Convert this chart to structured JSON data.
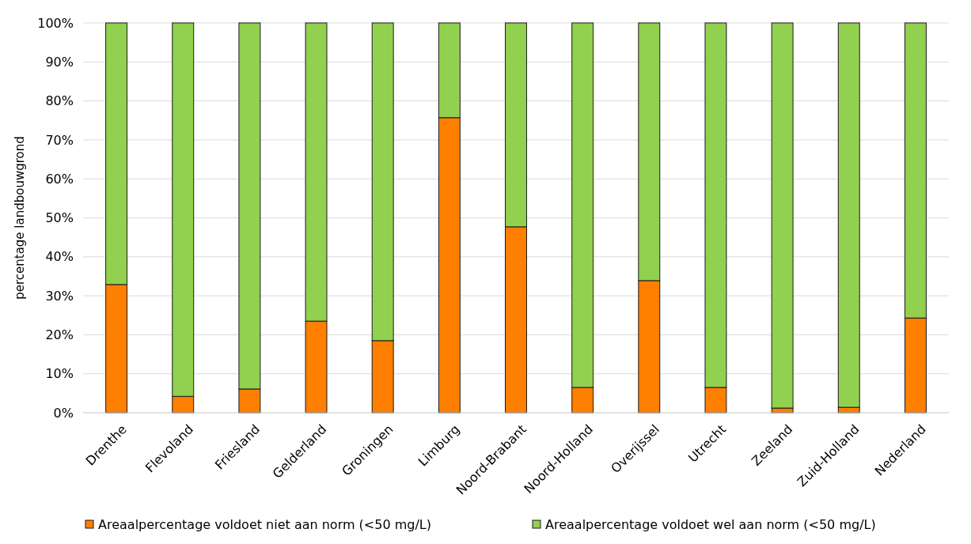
{
  "chart_data": {
    "type": "bar",
    "stacked": true,
    "ylabel": "percentage landbouwgrond",
    "categories": [
      "Drenthe",
      "Flevoland",
      "Friesland",
      "Gelderland",
      "Groningen",
      "Limburg",
      "Noord-Brabant",
      "Noord-Holland",
      "Overijssel",
      "Utrecht",
      "Zeeland",
      "Zuid-Holland",
      "Nederland"
    ],
    "series": [
      {
        "name": "Areaalpercentage voldoet niet aan norm (<50 mg/L)",
        "color": "#ff7f00",
        "values": [
          32.9,
          4.2,
          6.1,
          23.5,
          18.5,
          75.7,
          47.7,
          6.5,
          33.9,
          6.5,
          1.2,
          1.4,
          24.3
        ]
      },
      {
        "name": "Areaalpercentage voldoet wel aan norm (<50 mg/L)",
        "color": "#92d050",
        "values": [
          67.1,
          95.8,
          93.9,
          76.5,
          81.5,
          24.3,
          52.3,
          93.5,
          66.1,
          93.5,
          98.8,
          98.6,
          75.7
        ]
      }
    ],
    "ylim": [
      0,
      100
    ],
    "yticks": [
      {
        "value": 0,
        "label": "0%"
      },
      {
        "value": 10,
        "label": "10%"
      },
      {
        "value": 20,
        "label": "20%"
      },
      {
        "value": 30,
        "label": "30%"
      },
      {
        "value": 40,
        "label": "40%"
      },
      {
        "value": 50,
        "label": "50%"
      },
      {
        "value": 60,
        "label": "60%"
      },
      {
        "value": 70,
        "label": "70%"
      },
      {
        "value": 80,
        "label": "80%"
      },
      {
        "value": 90,
        "label": "90%"
      },
      {
        "value": 100,
        "label": "100%"
      }
    ],
    "grid": "y",
    "legend": "bottom"
  }
}
